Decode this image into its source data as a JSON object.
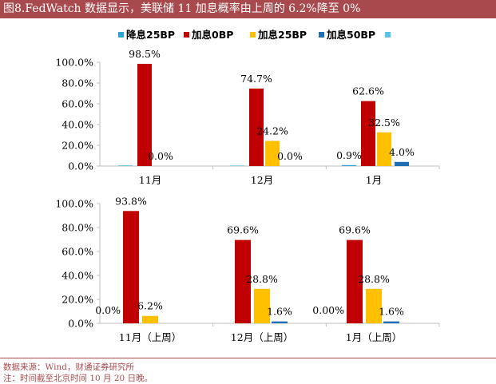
{
  "header": {
    "title": "图8.FedWatch 数据显示，美联储 11 加息概率由上周的 6.2%降至 0%"
  },
  "legend": [
    "降息25BP",
    "加息0BP",
    "加息25BP",
    "加息50BP",
    ""
  ],
  "colors": {
    "cut25": "#2aa6d8",
    "hike0": "#c00000",
    "hike25": "#ffc000",
    "hike50": "#1f6fb5",
    "extra": "#5bc0e6",
    "brand": "#a84a4d"
  },
  "footer": {
    "source": "数据来源：Wind，财通证券研究所",
    "note": "注：时间截至北京时间 10 月 20 日晚。"
  },
  "chart_data": [
    {
      "type": "bar",
      "categories": [
        "11月",
        "12月",
        "1月"
      ],
      "ylim": [
        0,
        100
      ],
      "yticks": [
        "0.0%",
        "20.0%",
        "40.0%",
        "60.0%",
        "80.0%",
        "100.0%"
      ],
      "series": [
        {
          "name": "降息25BP",
          "values": [
            0.5,
            0.4,
            0.9
          ],
          "labels": [
            "",
            "",
            "0.9%"
          ]
        },
        {
          "name": "加息0BP",
          "values": [
            98.5,
            74.7,
            62.6
          ],
          "labels": [
            "98.5%",
            "74.7%",
            "62.6%"
          ]
        },
        {
          "name": "加息25BP",
          "values": [
            0.0,
            24.2,
            32.5
          ],
          "labels": [
            "0.0%",
            "24.2%",
            "32.5%"
          ]
        },
        {
          "name": "加息50BP",
          "values": [
            0.0,
            0.0,
            4.0
          ],
          "labels": [
            "",
            "0.0%",
            "4.0%"
          ]
        }
      ]
    },
    {
      "type": "bar",
      "categories": [
        "11月（上周）",
        "12月（上周）",
        "1月（上周）"
      ],
      "ylim": [
        0,
        100
      ],
      "yticks": [
        "0.0%",
        "20.0%",
        "40.0%",
        "60.0%",
        "80.0%",
        "100.0%"
      ],
      "series": [
        {
          "name": "加息0BP",
          "values": [
            93.8,
            69.6,
            69.6
          ],
          "labels": [
            "93.8%",
            "69.6%",
            "69.6%"
          ]
        },
        {
          "name": "加息25BP",
          "values": [
            6.2,
            28.8,
            28.8
          ],
          "labels": [
            "6.2%",
            "28.8%",
            "28.8%"
          ]
        },
        {
          "name": "加息50BP",
          "values": [
            0.0,
            1.6,
            1.6
          ],
          "labels": [
            "",
            "1.6%",
            "1.6%"
          ]
        }
      ],
      "extra_labels": [
        "0.0%",
        "",
        "0.00%"
      ]
    }
  ]
}
